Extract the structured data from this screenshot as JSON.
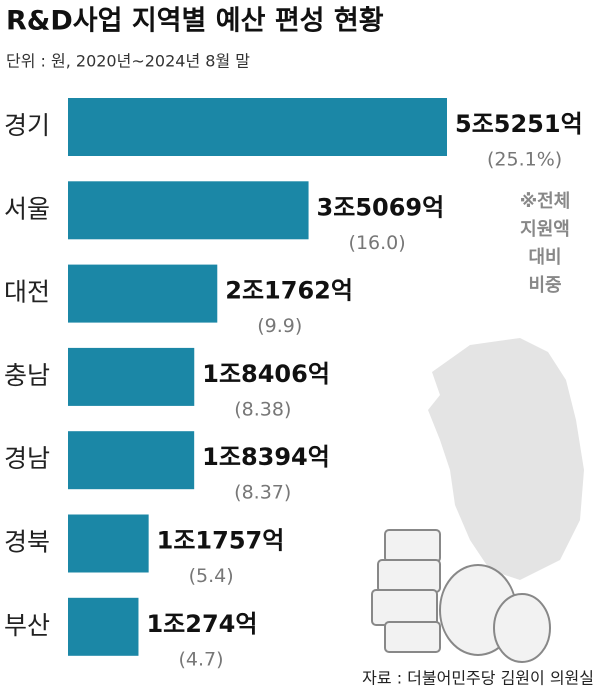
{
  "chart_data": {
    "type": "bar",
    "orientation": "horizontal",
    "title": "R&D사업 지역별 예산 편성 현황",
    "subtitle": "단위 : 원, 2020년~2024년 8월 말",
    "categories": [
      "경기",
      "서울",
      "대전",
      "충남",
      "경남",
      "경북",
      "부산"
    ],
    "values": [
      55251,
      35069,
      21762,
      18406,
      18394,
      11757,
      10274
    ],
    "value_labels": [
      "5조5251억",
      "3조5069억",
      "2조1762억",
      "1조8406억",
      "1조8394억",
      "1조1757억",
      "1조274억"
    ],
    "shares": [
      25.1,
      16.0,
      9.9,
      8.38,
      8.37,
      5.4,
      4.7
    ],
    "share_labels": [
      "(25.1%)",
      "(16.0)",
      "(9.9)",
      "(8.38)",
      "(8.37)",
      "(5.4)",
      "(4.7)"
    ],
    "note": [
      "※전체",
      "지원액",
      "대비",
      "비중"
    ],
    "source": "자료 : 더불어민주당 김원이 의원실",
    "color": "#1b87a6"
  }
}
